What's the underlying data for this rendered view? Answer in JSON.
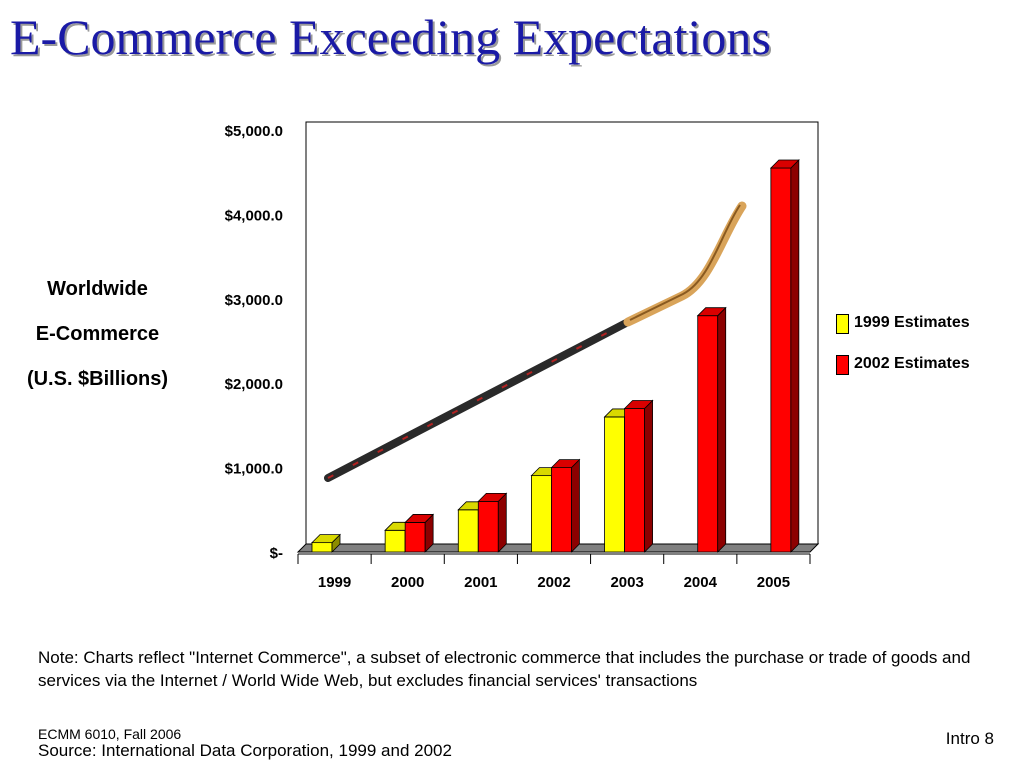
{
  "slide": {
    "title": "E-Commerce Exceeding Expectations",
    "side_label": [
      "Worldwide",
      "E-Commerce",
      "(U.S. $Billions)"
    ],
    "note": "Note: Charts reflect \"Internet Commerce\", a subset of electronic commerce that includes the purchase or trade of goods and services via the Internet / World Wide Web, but excludes financial services' transactions",
    "footer_course": "ECMM 6010, Fall 2006",
    "footer_source": "Source: International Data Corporation, 1999 and 2002",
    "footer_page": "Intro 8"
  },
  "colors": {
    "title": "#1a1aa6",
    "series_1999": "#ffff00",
    "series_2002": "#ff0000",
    "floor": "#808080",
    "stick_shaft": "#2a2a2a",
    "stick_blade": "#d9a45a"
  },
  "chart_data": {
    "type": "bar",
    "categories": [
      "1999",
      "2000",
      "2001",
      "2002",
      "2003",
      "2004",
      "2005"
    ],
    "series": [
      {
        "name": "1999 Estimates",
        "color": "#ffff00",
        "values": [
          111,
          257,
          500,
          905,
          1600,
          null,
          null
        ]
      },
      {
        "name": "2002 Estimates",
        "color": "#ff0000",
        "values": [
          null,
          350,
          600,
          1000,
          1700,
          2800,
          4550
        ]
      }
    ],
    "ylim": [
      0,
      5000
    ],
    "yticks": [
      0,
      1000,
      2000,
      3000,
      4000,
      5000
    ],
    "ytick_labels": [
      "$-",
      "$1,000.0",
      "$2,000.0",
      "$3,000.0",
      "$4,000.0",
      "$5,000.0"
    ],
    "legend_position": "right",
    "grid": false,
    "decoration": "hockey-stick"
  }
}
